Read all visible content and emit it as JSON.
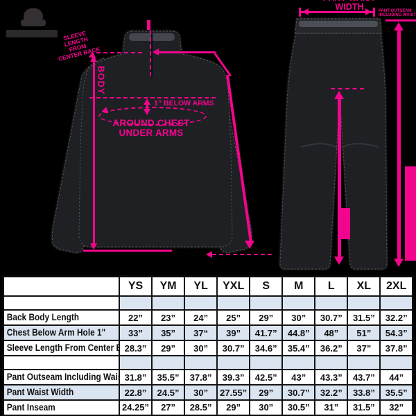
{
  "colors": {
    "accent_pink": "#f2058d",
    "table_stripe": "#dbe5f1",
    "background": "#000000"
  },
  "brand": {
    "logo": "ape-head-logo",
    "wordmark": "illegible-dark-wordmark"
  },
  "annotations": {
    "jacket": {
      "body_label": "BODY",
      "below_arms_label": "1” BELOW ARMS",
      "around_chest_line1": "AROUND CHEST",
      "around_chest_line2": "UNDER ARMS",
      "sleeve_label_line1": "SLEEVE",
      "sleeve_label_line2": "LENGTH FROM",
      "sleeve_label_line3": "CENTER BACK"
    },
    "pants": {
      "waist_label": "PANT WAIST WIDTH",
      "outseam_label_line1": "PANT OUTSEAM",
      "outseam_label_line2": "INCLUDING WAIST"
    }
  },
  "table": {
    "sizes": [
      "YS",
      "YM",
      "YL",
      "YXL",
      "S",
      "M",
      "L",
      "XL",
      "2XL"
    ],
    "rows": [
      {
        "spacer": true,
        "label": "",
        "values": [
          "",
          "",
          "",
          "",
          "",
          "",
          "",
          "",
          ""
        ]
      },
      {
        "label": "Back Body Length",
        "values": [
          "22”",
          "23”",
          "24”",
          "25”",
          "29”",
          "30”",
          "30.7”",
          "31.5”",
          "32.2”"
        ]
      },
      {
        "stripe": true,
        "label": "Chest Below Arm Hole 1\"",
        "values": [
          "33”",
          "35”",
          "37“",
          "39”",
          "41.7”",
          "44.8”",
          "48”",
          "51”",
          "54.3”"
        ]
      },
      {
        "label": "Sleeve Length From Center Back",
        "values": [
          "28.3”",
          "29”",
          "30”",
          "30.7”",
          "34.6”",
          "35.4”",
          "36.2”",
          "37”",
          "37.8”"
        ]
      },
      {
        "spacer": true,
        "label": "",
        "values": [
          "",
          "",
          "",
          "",
          "",
          "",
          "",
          "",
          ""
        ]
      },
      {
        "label": "Pant Outseam Including Waist",
        "values": [
          "31.8”",
          "35.5”",
          "37.8”",
          "39.3”",
          "42.5”",
          "43”",
          "43.3”",
          "43.7”",
          "44”"
        ]
      },
      {
        "stripe": true,
        "label": "Pant Waist Width",
        "values": [
          "22.8”",
          "24.5”",
          "30”",
          "27.55”",
          "29”",
          "30.7”",
          "32.2”",
          "33.8”",
          "35.5”"
        ]
      },
      {
        "label": "Pant Inseam",
        "values": [
          "24.25”",
          "27”",
          "28.5”",
          "29”",
          "30”",
          "30.5”",
          "31”",
          "31.5”",
          "32”"
        ]
      }
    ]
  }
}
